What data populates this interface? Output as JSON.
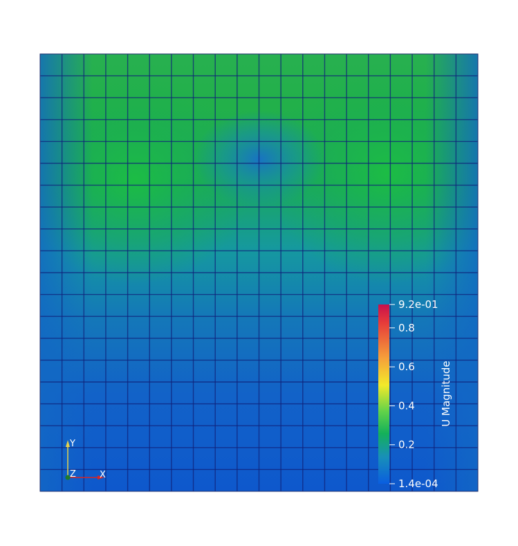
{
  "field": {
    "grid_cells": 20
  },
  "colorbar": {
    "title": "U Magnitude",
    "max_label": "9.2e-01",
    "min_label": "1.4e-04",
    "ticks": [
      "0.8",
      "0.6",
      "0.4",
      "0.2"
    ],
    "range": [
      0.00014,
      0.92
    ]
  },
  "axes_triad": {
    "x_label": "X",
    "y_label": "Y",
    "z_label": "Z",
    "x_color": "#d62728",
    "y_color": "#e8d24a",
    "z_color": "#1f7a2b"
  },
  "colors": {
    "low": "#3b4cc0",
    "high": "#c8104c"
  }
}
